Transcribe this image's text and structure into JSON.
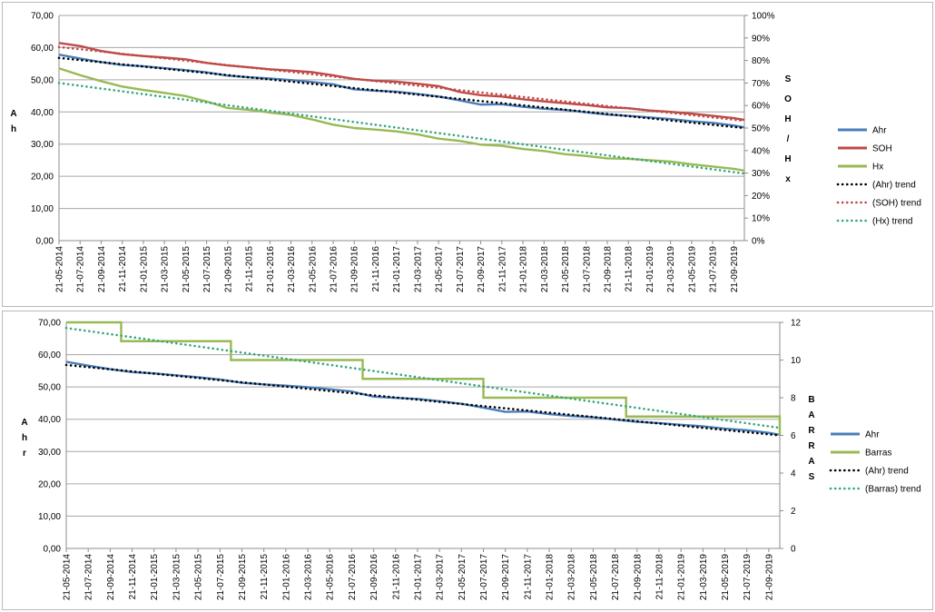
{
  "chart_data": [
    {
      "type": "line",
      "title": "",
      "xlabel": "",
      "ylabel": "A h",
      "y2label": "S O H / H x",
      "x_ticks": [
        "21-05-2014",
        "21-07-2014",
        "21-09-2014",
        "21-11-2014",
        "21-01-2015",
        "21-03-2015",
        "21-05-2015",
        "21-07-2015",
        "21-09-2015",
        "21-11-2015",
        "21-01-2016",
        "21-03-2016",
        "21-05-2016",
        "21-07-2016",
        "21-09-2016",
        "21-11-2016",
        "21-01-2017",
        "21-03-2017",
        "21-05-2017",
        "21-07-2017",
        "21-09-2017",
        "21-11-2017",
        "21-01-2018",
        "21-03-2018",
        "21-05-2018",
        "21-07-2018",
        "21-09-2018",
        "21-11-2018",
        "21-01-2019",
        "21-03-2019",
        "21-05-2019",
        "21-07-2019",
        "21-09-2019"
      ],
      "y_ticks": [
        "0,00",
        "10,00",
        "20,00",
        "30,00",
        "40,00",
        "50,00",
        "60,00",
        "70,00"
      ],
      "y2_ticks": [
        "0%",
        "10%",
        "20%",
        "30%",
        "40%",
        "50%",
        "60%",
        "70%",
        "80%",
        "90%",
        "100%"
      ],
      "ylim": [
        0,
        70
      ],
      "y2lim": [
        0,
        100
      ],
      "grid": true,
      "legend_position": "right",
      "x": [
        "2014-05",
        "2014-07",
        "2014-09",
        "2014-11",
        "2015-01",
        "2015-03",
        "2015-05",
        "2015-07",
        "2015-09",
        "2015-11",
        "2016-01",
        "2016-03",
        "2016-05",
        "2016-07",
        "2016-09",
        "2016-11",
        "2017-01",
        "2017-03",
        "2017-05",
        "2017-07",
        "2017-09",
        "2017-11",
        "2018-01",
        "2018-03",
        "2018-05",
        "2018-07",
        "2018-09",
        "2018-11",
        "2019-01",
        "2019-03",
        "2019-05",
        "2019-07",
        "2019-09",
        "2019-10"
      ],
      "series": [
        {
          "name": "Ahr",
          "axis": "left",
          "color": "#4a7ebb",
          "style": "solid",
          "values": [
            57.8,
            56.6,
            55.5,
            54.6,
            54.2,
            53.6,
            53.0,
            52.3,
            51.3,
            50.8,
            50.4,
            49.9,
            49.3,
            48.6,
            47.0,
            46.6,
            46.3,
            45.6,
            44.8,
            43.6,
            42.3,
            42.4,
            41.6,
            41.0,
            40.6,
            39.9,
            39.2,
            38.8,
            38.3,
            37.8,
            37.1,
            36.6,
            35.8,
            35.2
          ]
        },
        {
          "name": "SOH",
          "axis": "right",
          "color": "#be4b48",
          "style": "solid",
          "values": [
            87.8,
            86.4,
            84.2,
            82.8,
            82.0,
            81.3,
            80.5,
            78.9,
            77.8,
            77.0,
            76.1,
            75.5,
            74.8,
            73.4,
            71.8,
            71.0,
            70.6,
            69.7,
            68.6,
            66.0,
            64.6,
            64.0,
            62.8,
            61.8,
            61.0,
            60.2,
            59.2,
            58.8,
            57.8,
            57.2,
            56.4,
            55.4,
            54.4,
            53.6
          ]
        },
        {
          "name": "Hx",
          "axis": "right",
          "color": "#98b954",
          "style": "solid",
          "values": [
            76.5,
            73.5,
            70.8,
            68.4,
            66.9,
            65.6,
            64.2,
            61.8,
            58.9,
            58.1,
            56.9,
            55.8,
            53.8,
            51.5,
            50.0,
            49.3,
            48.5,
            47.2,
            45.3,
            44.3,
            42.6,
            42.1,
            40.7,
            39.8,
            38.4,
            37.6,
            36.5,
            36.3,
            35.7,
            35.1,
            33.9,
            32.9,
            31.9,
            31.1
          ]
        },
        {
          "name": "(Ahr) trend",
          "axis": "left",
          "color": "#000000",
          "style": "dotted",
          "start": 56.8,
          "end": 35.0
        },
        {
          "name": "(SOH) trend",
          "axis": "right",
          "color": "#be4b48",
          "style": "dotted",
          "start": 86.0,
          "end": 53.2
        },
        {
          "name": "(Hx) trend",
          "axis": "right",
          "color": "#32a87b",
          "style": "dotted",
          "start": 70.0,
          "end": 29.8
        }
      ]
    },
    {
      "type": "line",
      "title": "",
      "xlabel": "",
      "ylabel": "A h r",
      "y2label": "B A R R A S",
      "x_ticks": [
        "21-05-2014",
        "21-07-2014",
        "21-09-2014",
        "21-11-2014",
        "21-01-2015",
        "21-03-2015",
        "21-05-2015",
        "21-07-2015",
        "21-09-2015",
        "21-11-2015",
        "21-01-2016",
        "21-03-2016",
        "21-05-2016",
        "21-07-2016",
        "21-09-2016",
        "21-11-2016",
        "21-01-2017",
        "21-03-2017",
        "21-05-2017",
        "21-07-2017",
        "21-09-2017",
        "21-11-2017",
        "21-01-2018",
        "21-03-2018",
        "21-05-2018",
        "21-07-2018",
        "21-09-2018",
        "21-11-2018",
        "21-01-2019",
        "21-03-2019",
        "21-05-2019",
        "21-07-2019",
        "21-09-2019"
      ],
      "y_ticks": [
        "0,00",
        "10,00",
        "20,00",
        "30,00",
        "40,00",
        "50,00",
        "60,00",
        "70,00"
      ],
      "y2_ticks": [
        "0",
        "2",
        "4",
        "6",
        "8",
        "10",
        "12"
      ],
      "ylim": [
        0,
        70
      ],
      "y2lim": [
        0,
        12
      ],
      "grid": true,
      "legend_position": "right",
      "x": [
        "2014-05",
        "2014-07",
        "2014-09",
        "2014-11",
        "2015-01",
        "2015-03",
        "2015-05",
        "2015-07",
        "2015-09",
        "2015-11",
        "2016-01",
        "2016-03",
        "2016-05",
        "2016-07",
        "2016-09",
        "2016-11",
        "2017-01",
        "2017-03",
        "2017-05",
        "2017-07",
        "2017-09",
        "2017-11",
        "2018-01",
        "2018-03",
        "2018-05",
        "2018-07",
        "2018-09",
        "2018-11",
        "2019-01",
        "2019-03",
        "2019-05",
        "2019-07",
        "2019-09",
        "2019-10"
      ],
      "series": [
        {
          "name": "Ahr",
          "axis": "left",
          "color": "#4a7ebb",
          "style": "solid",
          "values": [
            57.8,
            56.6,
            55.5,
            54.6,
            54.2,
            53.6,
            53.0,
            52.3,
            51.3,
            50.8,
            50.4,
            49.9,
            49.3,
            48.6,
            47.0,
            46.6,
            46.3,
            45.6,
            44.8,
            43.6,
            42.3,
            42.4,
            41.6,
            41.0,
            40.6,
            39.9,
            39.2,
            38.8,
            38.3,
            37.8,
            37.1,
            36.6,
            35.8,
            35.2
          ]
        },
        {
          "name": "Barras",
          "axis": "right",
          "color": "#98b954",
          "style": "step",
          "steps": [
            [
              "2014-05",
              12
            ],
            [
              "2014-10",
              11
            ],
            [
              "2015-08",
              10
            ],
            [
              "2016-08",
              9
            ],
            [
              "2017-07",
              8
            ],
            [
              "2018-08",
              7
            ],
            [
              "2019-10",
              6
            ]
          ]
        },
        {
          "name": "(Ahr) trend",
          "axis": "left",
          "color": "#000000",
          "style": "dotted",
          "start": 56.8,
          "end": 35.0
        },
        {
          "name": "(Barras) trend",
          "axis": "right",
          "color": "#32a87b",
          "style": "dotted",
          "start": 11.7,
          "end": 6.4
        }
      ]
    }
  ]
}
